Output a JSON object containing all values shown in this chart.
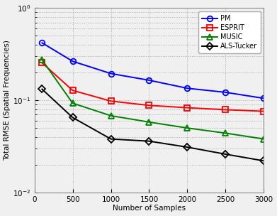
{
  "x": [
    100,
    500,
    1000,
    1500,
    2000,
    2500,
    3000
  ],
  "PM": [
    0.42,
    0.265,
    0.195,
    0.165,
    0.135,
    0.122,
    0.105
  ],
  "ESPRIT": [
    0.255,
    0.128,
    0.098,
    0.088,
    0.083,
    0.079,
    0.076
  ],
  "MUSIC": [
    0.275,
    0.093,
    0.068,
    0.058,
    0.05,
    0.044,
    0.038
  ],
  "ALS-Tucker": [
    0.132,
    0.065,
    0.038,
    0.036,
    0.031,
    0.026,
    0.022
  ],
  "colors": {
    "PM": "#0000FF",
    "ESPRIT": "#FF0000",
    "MUSIC": "#008000",
    "ALS-Tucker": "#000000"
  },
  "markers": {
    "PM": "o",
    "ESPRIT": "s",
    "MUSIC": "^",
    "ALS-Tucker": "D"
  },
  "ylabel": "Total RMSE (Spatial Frequencies)",
  "xlabel": "Number of Samples",
  "ylim": [
    0.01,
    1.0
  ],
  "xlim": [
    0,
    3000
  ],
  "xticks": [
    0,
    500,
    1000,
    1500,
    2000,
    2500,
    3000
  ],
  "yticks": [
    0.01,
    0.1,
    1.0
  ],
  "bg_color": "#f0f0f0",
  "legend_order": [
    "PM",
    "ESPRIT",
    "MUSIC",
    "ALS-Tucker"
  ]
}
